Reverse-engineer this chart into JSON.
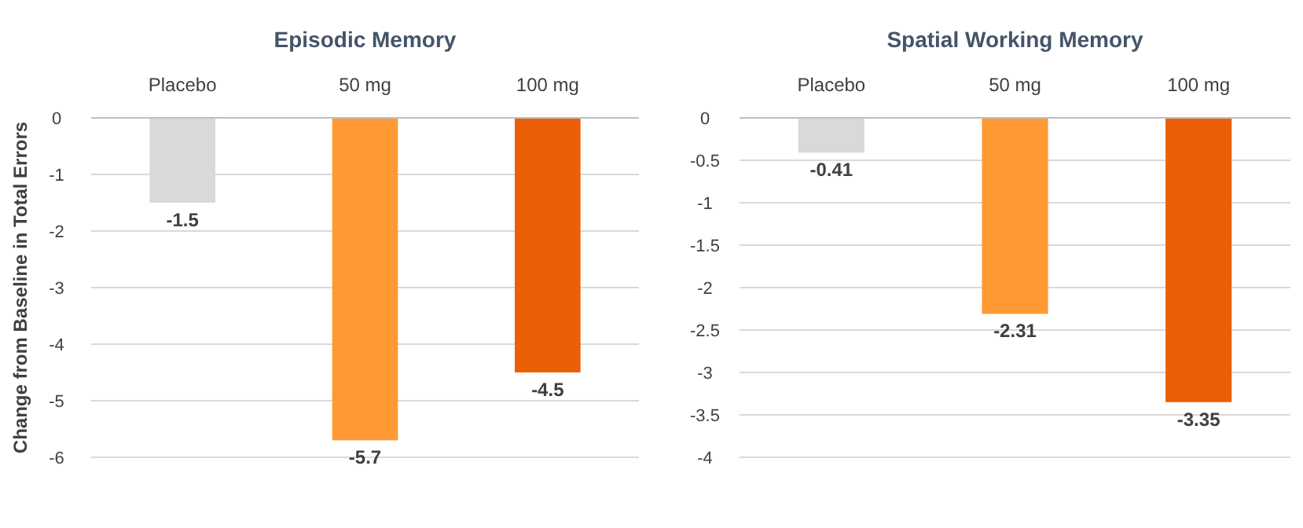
{
  "chart_data": [
    {
      "type": "bar",
      "title": "Episodic Memory",
      "ylabel": "Change from Baseline in Total Errors",
      "categories": [
        "Placebo",
        "50 mg",
        "100 mg"
      ],
      "values": [
        -1.5,
        -5.7,
        -4.5
      ],
      "colors": [
        "#d9d9d9",
        "#ff9933",
        "#eb5f06"
      ],
      "ylim": [
        -6,
        0
      ],
      "yticks": [
        -6,
        -5,
        -4,
        -3,
        -2,
        -1,
        0
      ],
      "grid": "y",
      "data_labels": true
    },
    {
      "type": "bar",
      "title": "Spatial Working Memory",
      "categories": [
        "Placebo",
        "50 mg",
        "100 mg"
      ],
      "values": [
        -0.41,
        -2.31,
        -3.35
      ],
      "colors": [
        "#d9d9d9",
        "#ff9933",
        "#eb5f06"
      ],
      "ylim": [
        -4,
        0
      ],
      "yticks": [
        -4,
        -3.5,
        -3,
        -2.5,
        -2,
        -1.5,
        -1,
        -0.5,
        0
      ],
      "grid": "y",
      "data_labels": true
    }
  ]
}
